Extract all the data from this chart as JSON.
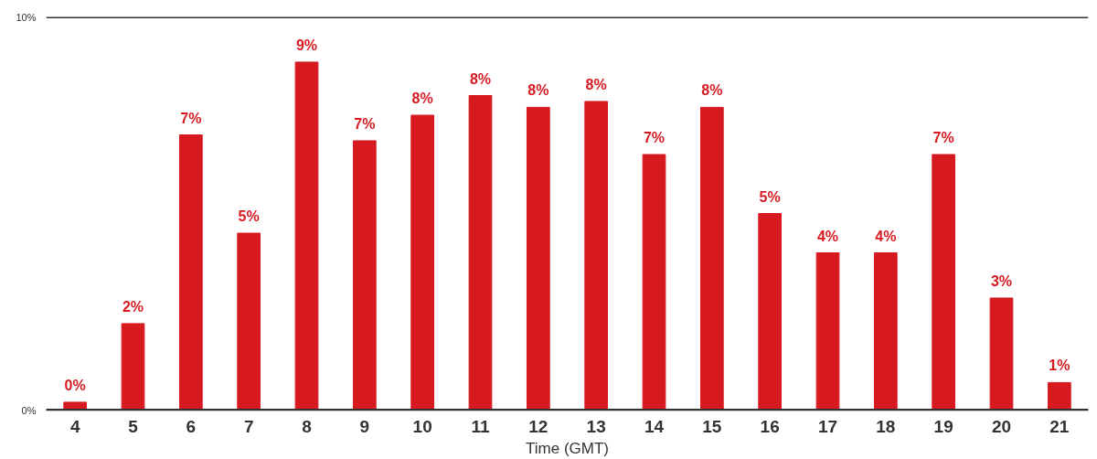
{
  "chart_data": {
    "type": "bar",
    "xlabel": "Time (GMT)",
    "categories": [
      "4",
      "5",
      "6",
      "7",
      "8",
      "9",
      "10",
      "11",
      "12",
      "13",
      "14",
      "15",
      "16",
      "17",
      "18",
      "19",
      "20",
      "21"
    ],
    "values": [
      0.2,
      2.2,
      7.0,
      4.5,
      8.85,
      6.85,
      7.5,
      8.0,
      7.7,
      7.85,
      6.5,
      7.7,
      5.0,
      4.0,
      4.0,
      6.5,
      2.85,
      0.7
    ],
    "value_labels": [
      "0%",
      "2%",
      "7%",
      "5%",
      "9%",
      "7%",
      "8%",
      "8%",
      "8%",
      "8%",
      "7%",
      "8%",
      "5%",
      "4%",
      "4%",
      "7%",
      "3%",
      "1%"
    ],
    "color": "#d71920",
    "ylim": [
      0,
      10
    ],
    "yticks": [
      {
        "value": 0,
        "label": "0%"
      },
      {
        "value": 10,
        "label": "10%"
      }
    ],
    "grid": "y"
  }
}
